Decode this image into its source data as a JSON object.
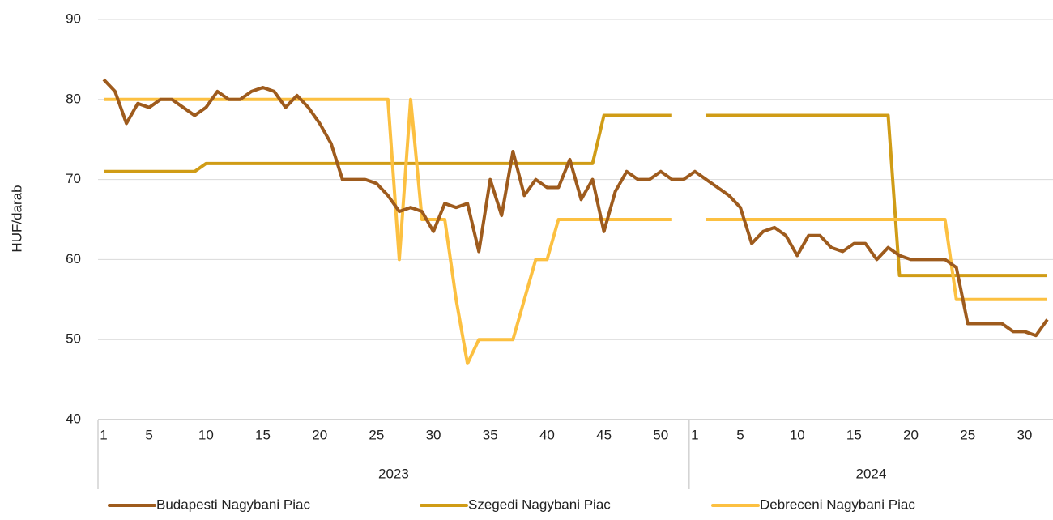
{
  "chart_data": {
    "type": "line",
    "y_label": "HUF/darab",
    "groups": [
      {
        "name": "2023",
        "categories": [
          "1",
          null,
          null,
          null,
          "5",
          null,
          null,
          null,
          null,
          "10",
          null,
          null,
          null,
          null,
          "15",
          null,
          null,
          null,
          null,
          "20",
          null,
          null,
          null,
          null,
          "25",
          null,
          null,
          null,
          null,
          "30",
          null,
          null,
          null,
          null,
          "35",
          null,
          null,
          null,
          null,
          "40",
          null,
          null,
          null,
          null,
          "45",
          null,
          null,
          null,
          null,
          "50",
          null,
          null
        ]
      },
      {
        "name": "2024",
        "categories": [
          "1",
          null,
          null,
          null,
          "5",
          null,
          null,
          null,
          null,
          "10",
          null,
          null,
          null,
          null,
          "15",
          null,
          null,
          null,
          null,
          "20",
          null,
          null,
          null,
          null,
          "25",
          null,
          null,
          null,
          null,
          "30",
          null,
          null
        ]
      }
    ],
    "series": [
      {
        "name": "Budapesti Nagybani Piac",
        "color": "#9e5b1d",
        "values": [
          82.5,
          81,
          77,
          79.5,
          79,
          80,
          80,
          79,
          78,
          79,
          81,
          80,
          80,
          81,
          81.5,
          81,
          79,
          80.5,
          79,
          77,
          74.5,
          70,
          70,
          70,
          69.5,
          68,
          66,
          66.5,
          66,
          63.5,
          67,
          66.5,
          67,
          61,
          70,
          65.5,
          73.5,
          68,
          70,
          69,
          69,
          72.5,
          67.5,
          70,
          63.5,
          68.5,
          71,
          70,
          70,
          71,
          70,
          70,
          71,
          70,
          69,
          68,
          66.5,
          62,
          63.5,
          64,
          63,
          60.5,
          63,
          63,
          61.5,
          61,
          62,
          62,
          60,
          61.5,
          60.5,
          60,
          60,
          60,
          60,
          59,
          52,
          52,
          52,
          52,
          51,
          51,
          50.5,
          52.5
        ]
      },
      {
        "name": "Szegedi Nagybani Piac",
        "color": "#d09c16",
        "values": [
          71,
          71,
          71,
          71,
          71,
          71,
          71,
          71,
          71,
          72,
          72,
          72,
          72,
          72,
          72,
          72,
          72,
          72,
          72,
          72,
          72,
          72,
          72,
          72,
          72,
          72,
          72,
          72,
          72,
          72,
          72,
          72,
          72,
          72,
          72,
          72,
          72,
          72,
          72,
          72,
          72,
          72,
          72,
          72,
          78,
          78,
          78,
          78,
          78,
          78,
          78,
          null,
          null,
          78,
          78,
          78,
          78,
          78,
          78,
          78,
          78,
          78,
          78,
          78,
          78,
          78,
          78,
          78,
          78,
          78,
          58,
          58,
          58,
          58,
          58,
          58,
          58,
          58,
          58,
          58,
          58,
          58,
          58,
          58
        ]
      },
      {
        "name": "Debreceni Nagybani Piac",
        "color": "#fcc041",
        "values": [
          80,
          80,
          80,
          80,
          80,
          80,
          80,
          80,
          80,
          80,
          80,
          80,
          80,
          80,
          80,
          80,
          80,
          80,
          80,
          80,
          80,
          80,
          80,
          80,
          80,
          80,
          60,
          80,
          65,
          65,
          65,
          55,
          47,
          50,
          50,
          50,
          50,
          55,
          60,
          60,
          65,
          65,
          65,
          65,
          65,
          65,
          65,
          65,
          65,
          65,
          65,
          null,
          null,
          65,
          65,
          65,
          65,
          65,
          65,
          65,
          65,
          65,
          65,
          65,
          65,
          65,
          65,
          65,
          65,
          65,
          65,
          65,
          65,
          65,
          65,
          55,
          55,
          55,
          55,
          55,
          55,
          55,
          55,
          55
        ]
      }
    ],
    "ylim": [
      40,
      90
    ],
    "yticks": [
      40,
      50,
      60,
      70,
      80,
      90
    ],
    "grid": true
  }
}
